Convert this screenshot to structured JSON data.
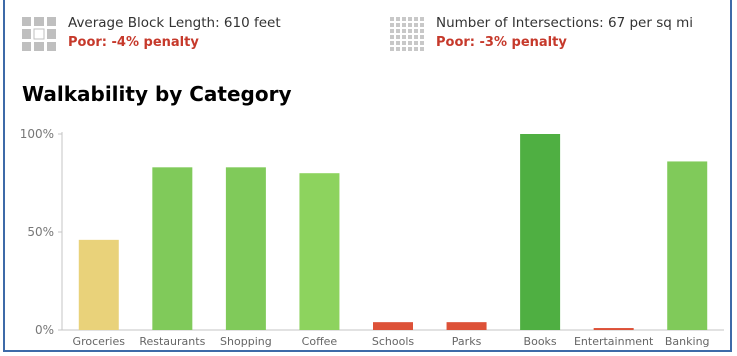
{
  "metrics": [
    {
      "label": "Average Block Length: 610 feet",
      "rating": "Poor: -4% penalty",
      "icon": "block-grid-icon"
    },
    {
      "label": "Number of Intersections: 67 per sq mi",
      "rating": "Poor: -3% penalty",
      "icon": "intersections-grid-icon"
    }
  ],
  "section_title": "Walkability by Category",
  "colors": {
    "poor_rating": "#c6392b",
    "frame": "#3d6aa8"
  },
  "chart_data": {
    "type": "bar",
    "title": "Walkability by Category",
    "xlabel": "",
    "ylabel": "",
    "ylim": [
      0,
      100
    ],
    "yticks": [
      "0%",
      "50%",
      "100%"
    ],
    "yticks_values": [
      0,
      50,
      100
    ],
    "grid": false,
    "categories": [
      "Groceries",
      "Restaurants",
      "Shopping",
      "Coffee",
      "Schools",
      "Parks",
      "Books",
      "Entertainment",
      "Banking"
    ],
    "values": [
      46,
      83,
      83,
      80,
      4,
      4,
      100,
      1,
      86
    ],
    "bar_colors": [
      "#e9d27a",
      "#80ca5a",
      "#80ca5a",
      "#8dd35e",
      "#dd5138",
      "#dd5138",
      "#4faf42",
      "#dd5138",
      "#80ca5a"
    ]
  }
}
